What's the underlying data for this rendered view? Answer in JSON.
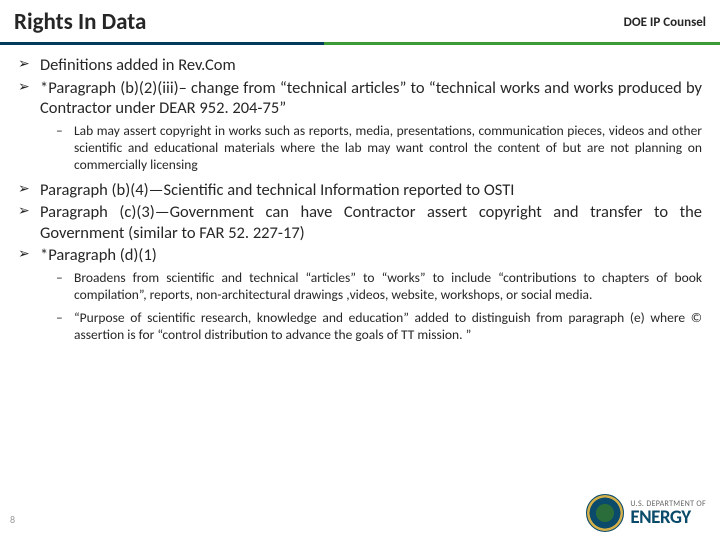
{
  "header": {
    "title": "Rights In Data",
    "subtitle": "DOE IP Counsel"
  },
  "divider": {
    "left_color": "#003a5d",
    "right_color": "#3d9b35"
  },
  "bullets": [
    {
      "level": 1,
      "text": "Definitions added in Rev.Com"
    },
    {
      "level": 1,
      "text": "*Paragraph (b)(2)(iii)– change from “technical articles” to “technical works and works produced by Contractor under DEAR 952. 204-75”"
    },
    {
      "level": 2,
      "text": "Lab may assert copyright in works such as reports, media, presentations, communication pieces, videos and other scientific and educational materials where the lab may want control the content of but are not planning on commercially licensing"
    },
    {
      "level": 1,
      "text": "Paragraph (b)(4)—Scientific and technical Information reported to OSTI"
    },
    {
      "level": 1,
      "text": "Paragraph (c)(3)—Government can have Contractor assert copyright and transfer to the Government (similar to FAR 52. 227-17)"
    },
    {
      "level": 1,
      "text": "*Paragraph (d)(1)"
    },
    {
      "level": 2,
      "text": "Broadens from scientific and technical “articles” to “works” to include “contributions to chapters of book compilation”, reports, non-architectural drawings ,videos, website, workshops, or social media."
    },
    {
      "level": 2,
      "text": "“Purpose of scientific research, knowledge and education” added to distinguish from paragraph (e) where © assertion is for “control distribution to advance the goals of TT mission. ”"
    }
  ],
  "footer": {
    "dept_small": "U.S. DEPARTMENT OF",
    "dept_big": "ENERGY"
  },
  "markers": {
    "l1": "➢",
    "l2": "–"
  },
  "page_number": "8"
}
